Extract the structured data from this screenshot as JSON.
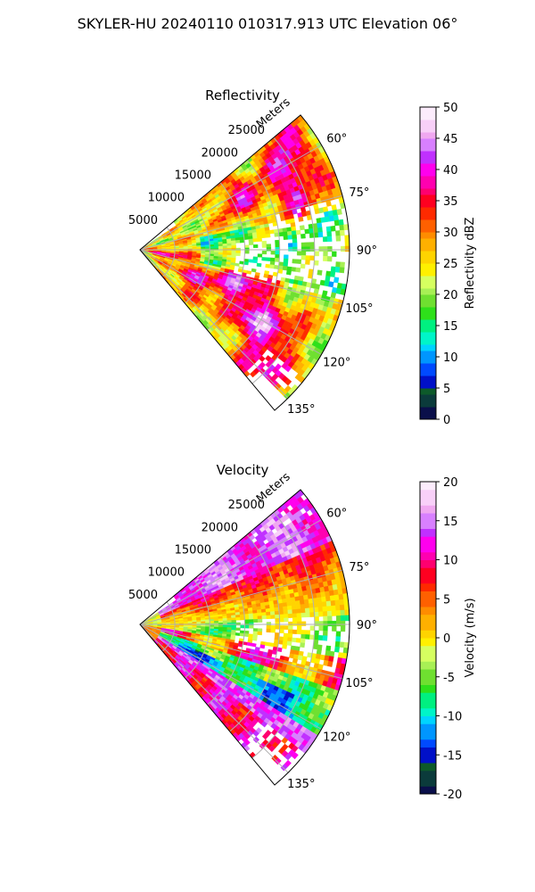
{
  "figure_title": "SKYLER-HU  20240110  010317.913 UTC Elevation 06°",
  "chart_data": [
    {
      "type": "heatmap",
      "subtype": "polar-sector",
      "title": "Reflectivity",
      "range_axis_label": "Meters",
      "range_ticks": [
        "5000",
        "10000",
        "15000",
        "20000",
        "25000"
      ],
      "range_tick_values": [
        5000,
        10000,
        15000,
        20000,
        25000
      ],
      "range_max": 30000,
      "azimuth_ticks": [
        "60°",
        "75°",
        "90°",
        "105°",
        "120°",
        "135°"
      ],
      "azimuth_tick_values": [
        60,
        75,
        90,
        105,
        120,
        135
      ],
      "azimuth_range_deg": [
        50,
        140
      ],
      "grid": true,
      "colorbar": {
        "label": "Reflectivity dBZ",
        "min": 0,
        "max": 50,
        "ticks": [
          "0",
          "5",
          "10",
          "15",
          "20",
          "25",
          "30",
          "35",
          "40",
          "45",
          "50"
        ],
        "tick_values": [
          0,
          5,
          10,
          15,
          20,
          25,
          30,
          35,
          40,
          45,
          50
        ],
        "levels": 50,
        "colors": [
          "#0a0f4a",
          "#0b3b3b",
          "#0d5a2a",
          "#0010c8",
          "#004aff",
          "#0096ff",
          "#00d4ff",
          "#00f5c8",
          "#00f080",
          "#2ee01a",
          "#6fe030",
          "#a8f055",
          "#d6ff60",
          "#fff000",
          "#ffd400",
          "#ffb000",
          "#ff8c00",
          "#ff6000",
          "#ff2a00",
          "#ff0020",
          "#ff0070",
          "#ff00b0",
          "#ff00ee",
          "#c030ff",
          "#d880ff",
          "#f0a8f0",
          "#f8d0f8",
          "#fcecfc"
        ]
      },
      "field": {
        "description_values": "Mostly 20-30 dBZ (yellow-green) with embedded 33-40 dBZ (red/magenta) cells; sparse returns near 90°-105° east of ~9000 m",
        "typical_min": 15,
        "typical_max": 42
      }
    },
    {
      "type": "heatmap",
      "subtype": "polar-sector",
      "title": "Velocity",
      "range_axis_label": "Meters",
      "range_ticks": [
        "5000",
        "10000",
        "15000",
        "20000",
        "25000"
      ],
      "range_tick_values": [
        5000,
        10000,
        15000,
        20000,
        25000
      ],
      "range_max": 30000,
      "azimuth_ticks": [
        "60°",
        "75°",
        "90°",
        "105°",
        "120°",
        "135°"
      ],
      "azimuth_tick_values": [
        60,
        75,
        90,
        105,
        120,
        135
      ],
      "azimuth_range_deg": [
        50,
        140
      ],
      "grid": true,
      "colorbar": {
        "label": "Velocity (m/s)",
        "min": -20,
        "max": 20,
        "ticks": [
          "-20",
          "-15",
          "-10",
          "-5",
          "0",
          "5",
          "10",
          "15",
          "20"
        ],
        "tick_values": [
          -20,
          -15,
          -10,
          -5,
          0,
          5,
          10,
          15,
          20
        ],
        "levels": 40,
        "colors": [
          "#0a0f4a",
          "#0b3b3b",
          "#0d5a2a",
          "#0010c8",
          "#004aff",
          "#0096ff",
          "#00d4ff",
          "#00f5c8",
          "#00f080",
          "#2ee01a",
          "#6fe030",
          "#a8f055",
          "#d6ff60",
          "#fff000",
          "#ffd400",
          "#ffb000",
          "#ff8c00",
          "#ff6000",
          "#ff2a00",
          "#ff0020",
          "#ff0070",
          "#ff00b0",
          "#ff00ee",
          "#c030ff",
          "#d880ff",
          "#f0a8f0",
          "#f8d0f8",
          "#fcecfc"
        ]
      },
      "field": {
        "description_values": "Positive 5-15 m/s (red/magenta) in 55°-80° and 110°-135° bands; near 0 to -5 m/s (yellow/green) around 85°-100°; -5 to -12 m/s (green/cyan) near 115°-125°",
        "typical_min": -12,
        "typical_max": 17
      }
    }
  ]
}
